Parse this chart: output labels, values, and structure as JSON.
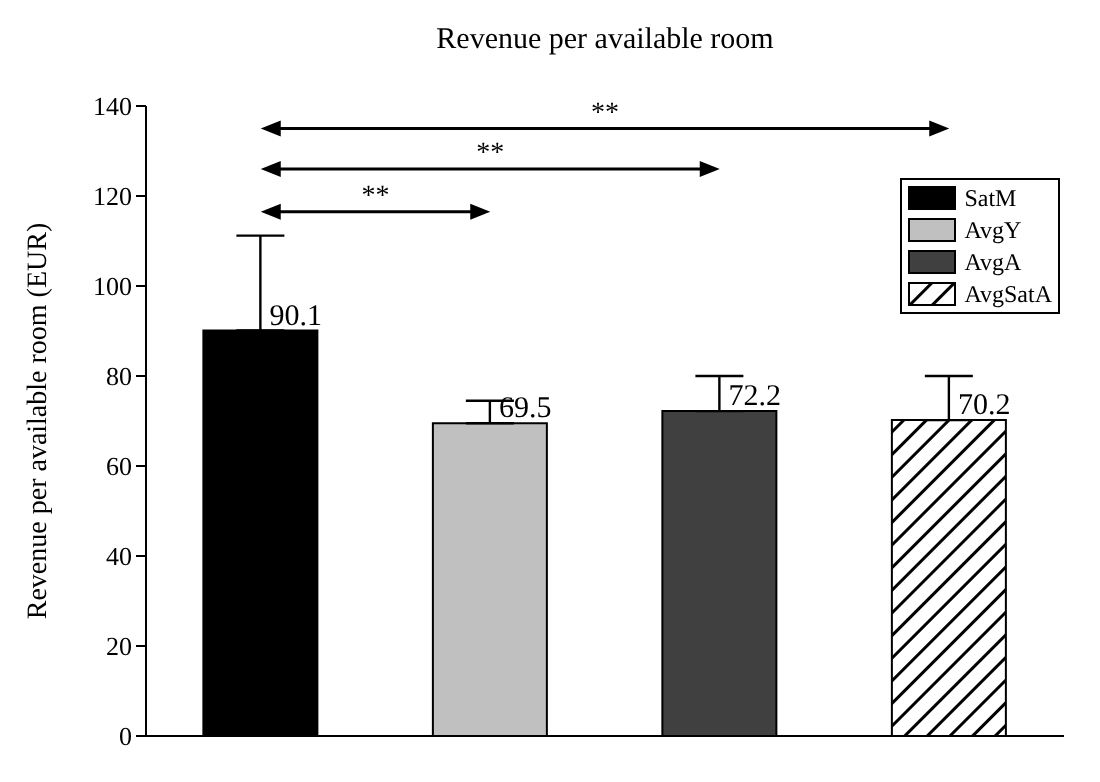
{
  "chart_data": {
    "type": "bar",
    "title": "Revenue per available room",
    "ylabel": "Revenue per available room (EUR)",
    "categories": [
      null,
      null,
      null,
      null
    ],
    "stacked": true,
    "series": [
      {
        "name": "SatM",
        "color": "#000000",
        "values": [
          90.1,
          null,
          null,
          null
        ],
        "errors": [
          [
            90.1,
            111.2
          ],
          null,
          null,
          null
        ]
      },
      {
        "name": "AvgY",
        "color": "#c0c0c0",
        "values": [
          null,
          69.5,
          null,
          null
        ],
        "errors": [
          null,
          [
            69.5,
            74.5
          ],
          null,
          null
        ]
      },
      {
        "name": "AvgA",
        "color": "#404040",
        "values": [
          null,
          null,
          72.2,
          null
        ],
        "errors": [
          null,
          null,
          [
            72.2,
            80
          ],
          null
        ]
      },
      {
        "name": "AvgSatA",
        "color": "#000000",
        "values": [
          null,
          null,
          null,
          70.2
        ],
        "errors": [
          null,
          null,
          null,
          [
            70.2,
            80
          ]
        ]
      }
    ],
    "data_labels": true,
    "ylim": [
      0,
      140
    ],
    "yticks": [
      0,
      20,
      40,
      60,
      80,
      100,
      120,
      140
    ],
    "grid": false,
    "legend": "top right",
    "annotations": [
      "**",
      "**",
      "**"
    ]
  }
}
